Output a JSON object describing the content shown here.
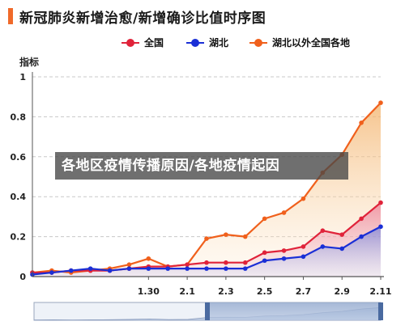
{
  "title": "新冠肺炎新增治愈/新增确诊比值时序图",
  "overlay_text": "各地区疫情传播原因/各地疫情起因",
  "chart_data": {
    "type": "area",
    "ylabel": "指标",
    "ylim": [
      0,
      1
    ],
    "yticks": [
      "0",
      "0.2",
      "0.4",
      "0.6",
      "0.8",
      "1"
    ],
    "x": [
      "1.24",
      "1.25",
      "1.26",
      "1.27",
      "1.28",
      "1.29",
      "1.30",
      "1.31",
      "2.1",
      "2.2",
      "2.3",
      "2.4",
      "2.5",
      "2.6",
      "2.7",
      "2.8",
      "2.9",
      "2.10",
      "2.11"
    ],
    "xtick_labels": [
      "1.30",
      "2.1",
      "2.3",
      "2.5",
      "2.7",
      "2.9",
      "2.11"
    ],
    "grid": true,
    "legend_position": "top",
    "series": [
      {
        "name": "全国",
        "color": "#e0233a",
        "values": [
          0.02,
          0.02,
          0.03,
          0.03,
          0.03,
          0.04,
          0.05,
          0.05,
          0.06,
          0.07,
          0.07,
          0.07,
          0.12,
          0.13,
          0.15,
          0.23,
          0.21,
          0.29,
          0.37
        ]
      },
      {
        "name": "湖北",
        "color": "#1a2fd6",
        "values": [
          0.01,
          0.02,
          0.03,
          0.04,
          0.03,
          0.04,
          0.04,
          0.04,
          0.04,
          0.04,
          0.04,
          0.04,
          0.08,
          0.09,
          0.1,
          0.15,
          0.14,
          0.2,
          0.25
        ]
      },
      {
        "name": "湖北以外全国各地",
        "color": "#f0601c",
        "values": [
          0.02,
          0.03,
          0.02,
          0.03,
          0.04,
          0.06,
          0.09,
          0.05,
          0.06,
          0.19,
          0.21,
          0.2,
          0.29,
          0.32,
          0.39,
          0.52,
          0.61,
          0.77,
          0.87
        ]
      }
    ]
  },
  "slider": {
    "range_start": 0.5,
    "range_end": 1.0,
    "track_color": "#c3d2e8",
    "window_color": "#4a6aa0"
  }
}
